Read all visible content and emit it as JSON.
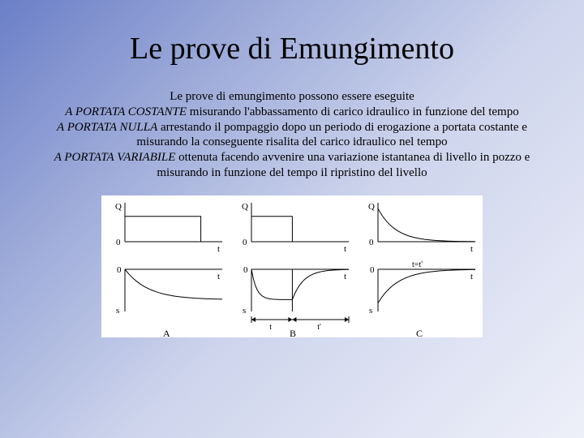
{
  "title": "Le prove di Emungimento",
  "intro": "Le prove di emungimento possono essere eseguite",
  "line1_ital": "A PORTATA COSTANTE",
  "line1_rest": " misurando l'abbassamento di carico idraulico in funzione del tempo",
  "line2_ital": "A PORTATA NULLA",
  "line2_rest": " arrestando il pompaggio dopo un periodo di erogazione a portata costante e misurando la conseguente risalita del carico idraulico nel tempo",
  "line3_ital": "A PORTATA VARIABILE",
  "line3_rest": " ottenuta facendo avvenire una variazione istantanea di livello in pozzo e misurando in funzione del tempo il ripristino del livello",
  "figure": {
    "background": "#ffffff",
    "stroke": "#000000",
    "stroke_width": 1,
    "label_fontsize": 11,
    "panel_caption_fontsize": 12,
    "panels": [
      {
        "caption": "A",
        "y_label_top": "Q",
        "y_label_bot": "s",
        "x_label": "t",
        "zero_top": "0",
        "zero_bot": "0",
        "q_curve": {
          "type": "step",
          "x0": 0,
          "x1": 0.78,
          "y": 0.65
        },
        "s_curve": {
          "type": "decay",
          "from": 0,
          "to": -0.72,
          "rate": 4.2
        }
      },
      {
        "caption": "B",
        "y_label_top": "Q",
        "y_label_bot": "s",
        "x_label": "t",
        "zero_top": "0",
        "zero_bot": "0",
        "q_curve": {
          "type": "step",
          "x0": 0,
          "x1": 0.42,
          "y": 0.65
        },
        "s_curve": {
          "type": "decay_recover",
          "split": 0.42,
          "depth": -0.72,
          "rate_down": 8,
          "rate_up": 5
        },
        "arrows": true
      },
      {
        "caption": "C",
        "y_label_top": "Q",
        "y_label_bot": "s",
        "x_label": "t",
        "extra_x_label": "t=t'",
        "zero_top": "0",
        "zero_bot": "0",
        "q_curve": {
          "type": "exp_decay",
          "y0": 0.85,
          "rate": 5.5
        },
        "s_curve": {
          "type": "exp_decay_neg",
          "y0": -0.8,
          "rate": 4.8
        }
      }
    ]
  }
}
